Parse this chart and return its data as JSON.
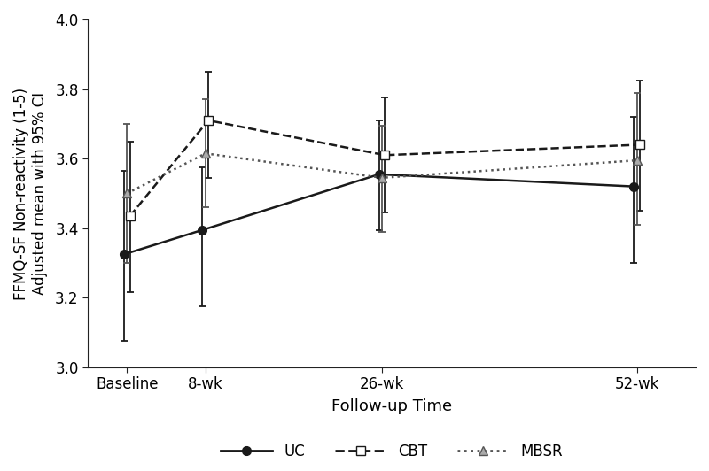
{
  "x_positions": [
    0,
    8,
    26,
    52
  ],
  "x_labels": [
    "Baseline",
    "8-wk",
    "26-wk",
    "52-wk"
  ],
  "xlabel": "Follow-up Time",
  "ylabel": "FFMQ-SF Non-reactivity (1-5)\nAdjusted mean with 95% CI",
  "ylim": [
    3.0,
    4.0
  ],
  "yticks": [
    3.0,
    3.2,
    3.4,
    3.6,
    3.8,
    4.0
  ],
  "xlim": [
    -4,
    58
  ],
  "series": {
    "UC": {
      "means": [
        3.325,
        3.395,
        3.555,
        3.52
      ],
      "ci_low": [
        3.075,
        3.175,
        3.395,
        3.3
      ],
      "ci_high": [
        3.565,
        3.575,
        3.71,
        3.72
      ],
      "color": "#1a1a1a",
      "linestyle": "-",
      "marker": "o",
      "markerfacecolor": "#1a1a1a",
      "markeredgecolor": "#1a1a1a",
      "markersize": 7
    },
    "CBT": {
      "means": [
        3.435,
        3.71,
        3.61,
        3.64
      ],
      "ci_low": [
        3.215,
        3.545,
        3.445,
        3.45
      ],
      "ci_high": [
        3.65,
        3.85,
        3.775,
        3.825
      ],
      "color": "#1a1a1a",
      "linestyle": "--",
      "marker": "s",
      "markerfacecolor": "white",
      "markeredgecolor": "#1a1a1a",
      "markersize": 7
    },
    "MBSR": {
      "means": [
        3.5,
        3.615,
        3.545,
        3.595
      ],
      "ci_low": [
        3.3,
        3.46,
        3.39,
        3.41
      ],
      "ci_high": [
        3.7,
        3.77,
        3.695,
        3.79
      ],
      "color": "#555555",
      "linestyle": ":",
      "marker": "^",
      "markerfacecolor": "#aaaaaa",
      "markeredgecolor": "#555555",
      "markersize": 7
    }
  },
  "background_color": "#ffffff",
  "capsize": 3,
  "linewidth": 1.8,
  "elinewidth": 1.3
}
